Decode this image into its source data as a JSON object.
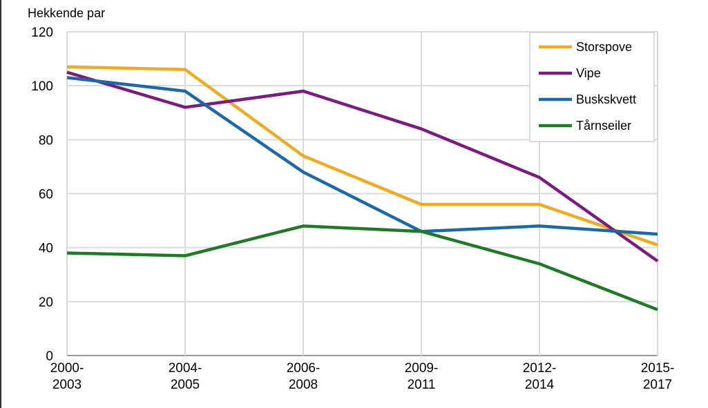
{
  "chart_data": {
    "type": "line",
    "ylabel": "Hekkende par",
    "xlabel": "",
    "categories": [
      "2000-2003",
      "2004-2005",
      "2006-2008",
      "2009-2011",
      "2012-2014",
      "2015-2017"
    ],
    "category_lines": [
      [
        "2000-",
        "2003"
      ],
      [
        "2004-",
        "2005"
      ],
      [
        "2006-",
        "2008"
      ],
      [
        "2009-",
        "2011"
      ],
      [
        "2012-",
        "2014"
      ],
      [
        "2015-",
        "2017"
      ]
    ],
    "ylim": [
      0,
      120
    ],
    "yticks": [
      0,
      20,
      40,
      60,
      80,
      100,
      120
    ],
    "grid": true,
    "legend_position": "top-right",
    "series": [
      {
        "name": "Storspove",
        "color": "#f0aa1e",
        "values": [
          107,
          106,
          74,
          56,
          56,
          41
        ]
      },
      {
        "name": "Vipe",
        "color": "#7b1b7e",
        "values": [
          105,
          92,
          98,
          84,
          66,
          35
        ]
      },
      {
        "name": "Buskskvett",
        "color": "#1a6aab",
        "values": [
          103,
          98,
          68,
          46,
          48,
          45
        ]
      },
      {
        "name": "Tårnseiler",
        "color": "#1f7a24",
        "values": [
          38,
          37,
          48,
          46,
          34,
          17
        ]
      }
    ]
  }
}
